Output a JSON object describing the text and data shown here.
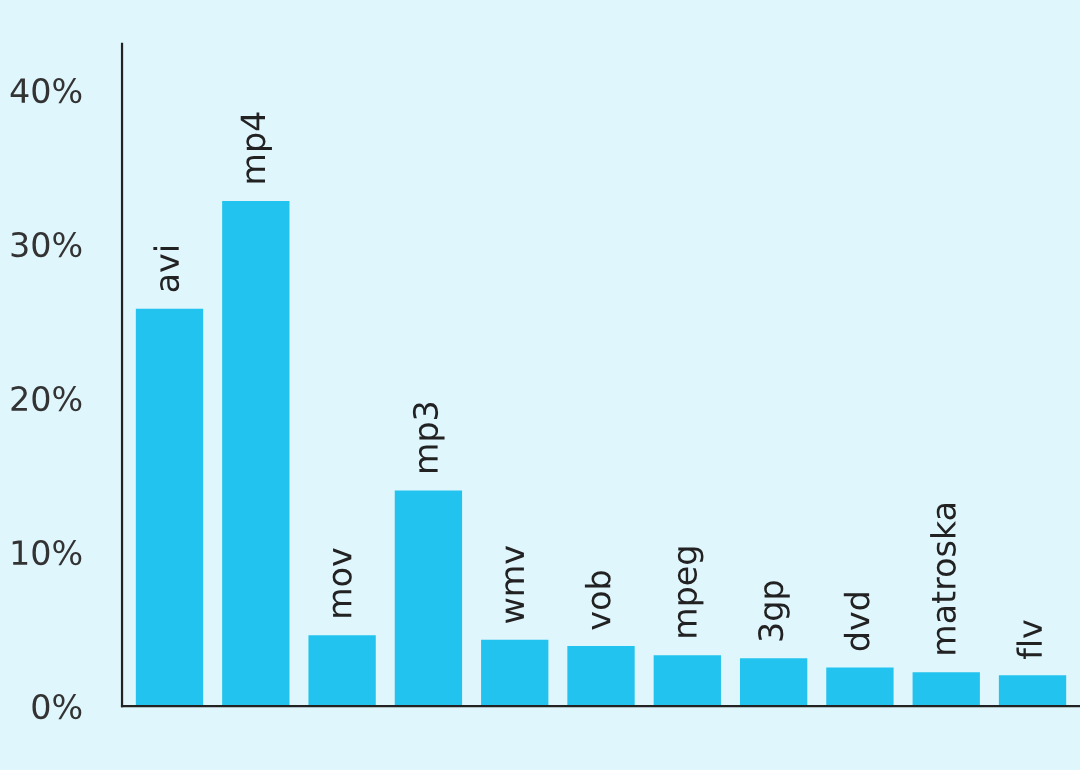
{
  "chart_data": {
    "type": "bar",
    "categories": [
      "avi",
      "mp4",
      "mov",
      "mp3",
      "wmv",
      "vob",
      "mpeg",
      "3gp",
      "dvd",
      "matroska",
      "flv"
    ],
    "values": [
      25.8,
      32.8,
      4.6,
      14.0,
      4.3,
      3.9,
      3.3,
      3.1,
      2.5,
      2.2,
      2.0
    ],
    "color": "#22c3ee",
    "ylim": [
      0,
      43
    ],
    "yticks": [
      {
        "value": 0,
        "label": "0%"
      },
      {
        "value": 10,
        "label": "10%"
      },
      {
        "value": 20,
        "label": "20%"
      },
      {
        "value": 30,
        "label": "30%"
      },
      {
        "value": 40,
        "label": "40%"
      }
    ],
    "grid": false
  }
}
